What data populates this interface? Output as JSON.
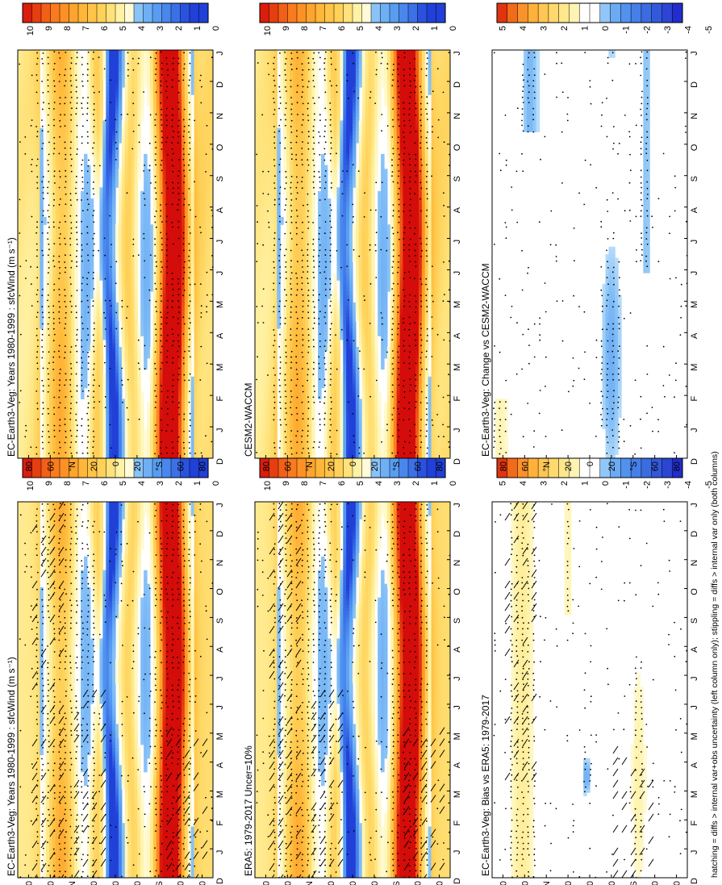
{
  "footer_note": "hatching = diffs > internal var+obs uncertainty (left column only); stippling = diffs > internal var only (both columns)",
  "colors": {
    "full_scale": [
      "#ffffff",
      "#2020d0",
      "#2e4fe0",
      "#3d73ea",
      "#4f8ff0",
      "#6aa8f4",
      "#8ac0f8",
      "#b4d9fb",
      "#ffffff",
      "#fffcd2",
      "#fff4a6",
      "#ffe680",
      "#ffd75c",
      "#ffc23c",
      "#ffa628",
      "#ff8a1c",
      "#f86a14",
      "#ee4a10",
      "#e02a0c",
      "#d00a0a"
    ],
    "diff_scale": [
      "#1f1fc8",
      "#2f4ed6",
      "#3f70e4",
      "#4f8fef",
      "#68a8f4",
      "#86c0f8",
      "#a9d7fb",
      "#ffffff",
      "#ffffff",
      "#fffcc8",
      "#ffef9a",
      "#ffdd72",
      "#ffc74e",
      "#ffab34",
      "#ff8b22",
      "#f46618",
      "#e6400e",
      "#d4180a"
    ]
  },
  "chart_data": [
    {
      "type": "heatmap",
      "title": "EC-Earth3-Veg: Years 1980-1999 : sfcWind (m s⁻¹)",
      "xlabel": "",
      "ylabel": "",
      "months": [
        "J",
        "F",
        "M",
        "A",
        "M",
        "J",
        "J",
        "A",
        "S",
        "O",
        "N",
        "D",
        "J"
      ],
      "x_start_label": "D",
      "lat_ticks": [
        "80",
        "60",
        "°N",
        "20",
        "0",
        "20",
        "°S",
        "60",
        "80"
      ],
      "colorbar_labels": [
        "10",
        "9",
        "8",
        "7",
        "6",
        "5",
        "4",
        "3",
        "2",
        "1",
        "0"
      ],
      "zlim": [
        0,
        10
      ],
      "hatching": true,
      "stippling": true
    },
    {
      "type": "heatmap",
      "title": "EC-Earth3-Veg: Years 1980-1999 : sfcWind (m s⁻¹)",
      "months": [
        "J",
        "F",
        "M",
        "A",
        "M",
        "J",
        "J",
        "A",
        "S",
        "O",
        "N",
        "D",
        "J"
      ],
      "x_start_label": "D",
      "lat_ticks": [
        "80",
        "60",
        "°N",
        "20",
        "0",
        "20",
        "°S",
        "60",
        "80"
      ],
      "colorbar_labels": [
        "10",
        "9",
        "8",
        "7",
        "6",
        "5",
        "4",
        "3",
        "2",
        "1",
        "0"
      ],
      "zlim": [
        0,
        10
      ],
      "hatching": false,
      "stippling": true
    },
    {
      "type": "heatmap",
      "title": "ERA5: 1979-2017 Uncer=10%",
      "months": [
        "J",
        "F",
        "M",
        "A",
        "M",
        "J",
        "J",
        "A",
        "S",
        "O",
        "N",
        "D",
        "J"
      ],
      "x_start_label": "D",
      "lat_ticks": [
        "80",
        "60",
        "°N",
        "20",
        "0",
        "20",
        "°S",
        "60",
        "80"
      ],
      "colorbar_labels": [
        "10",
        "9",
        "8",
        "7",
        "6",
        "5",
        "4",
        "3",
        "2",
        "1",
        "0"
      ],
      "zlim": [
        0,
        10
      ],
      "hatching": true,
      "stippling": true
    },
    {
      "type": "heatmap",
      "title": "CESM2-WACCM",
      "months": [
        "J",
        "F",
        "M",
        "A",
        "M",
        "J",
        "J",
        "A",
        "S",
        "O",
        "N",
        "D",
        "J"
      ],
      "x_start_label": "D",
      "lat_ticks": [
        "80",
        "60",
        "°N",
        "20",
        "0",
        "20",
        "°S",
        "60",
        "80"
      ],
      "colorbar_labels": [
        "10",
        "9",
        "8",
        "7",
        "6",
        "5",
        "4",
        "3",
        "2",
        "1",
        "0"
      ],
      "zlim": [
        0,
        10
      ],
      "hatching": false,
      "stippling": true
    },
    {
      "type": "heatmap",
      "title": "EC-Earth3-Veg: Bias vs ERA5: 1979-2017",
      "months": [
        "J",
        "F",
        "M",
        "A",
        "M",
        "J",
        "J",
        "A",
        "S",
        "O",
        "N",
        "D",
        "J"
      ],
      "x_start_label": "D",
      "lat_ticks": [
        "80",
        "60",
        "°N",
        "20",
        "0",
        "20",
        "°S",
        "60",
        "80"
      ],
      "colorbar_labels": [
        "5",
        "4",
        "3",
        "2",
        "1",
        "0",
        "-1",
        "-2",
        "-3",
        "-4",
        "-5"
      ],
      "zlim": [
        -5,
        5
      ],
      "hatching": true,
      "stippling": true
    },
    {
      "type": "heatmap",
      "title": "EC-Earth3-Veg: Change vs CESM2-WACCM",
      "months": [
        "J",
        "F",
        "M",
        "A",
        "M",
        "J",
        "J",
        "A",
        "S",
        "O",
        "N",
        "D",
        "J"
      ],
      "x_start_label": "D",
      "lat_ticks": [
        "80",
        "60",
        "°N",
        "20",
        "0",
        "20",
        "°S",
        "60",
        "80"
      ],
      "colorbar_labels": [
        "5",
        "4",
        "3",
        "2",
        "1",
        "0",
        "-1",
        "-2",
        "-3",
        "-4",
        "-5"
      ],
      "zlim": [
        -5,
        5
      ],
      "hatching": false,
      "stippling": true
    }
  ]
}
